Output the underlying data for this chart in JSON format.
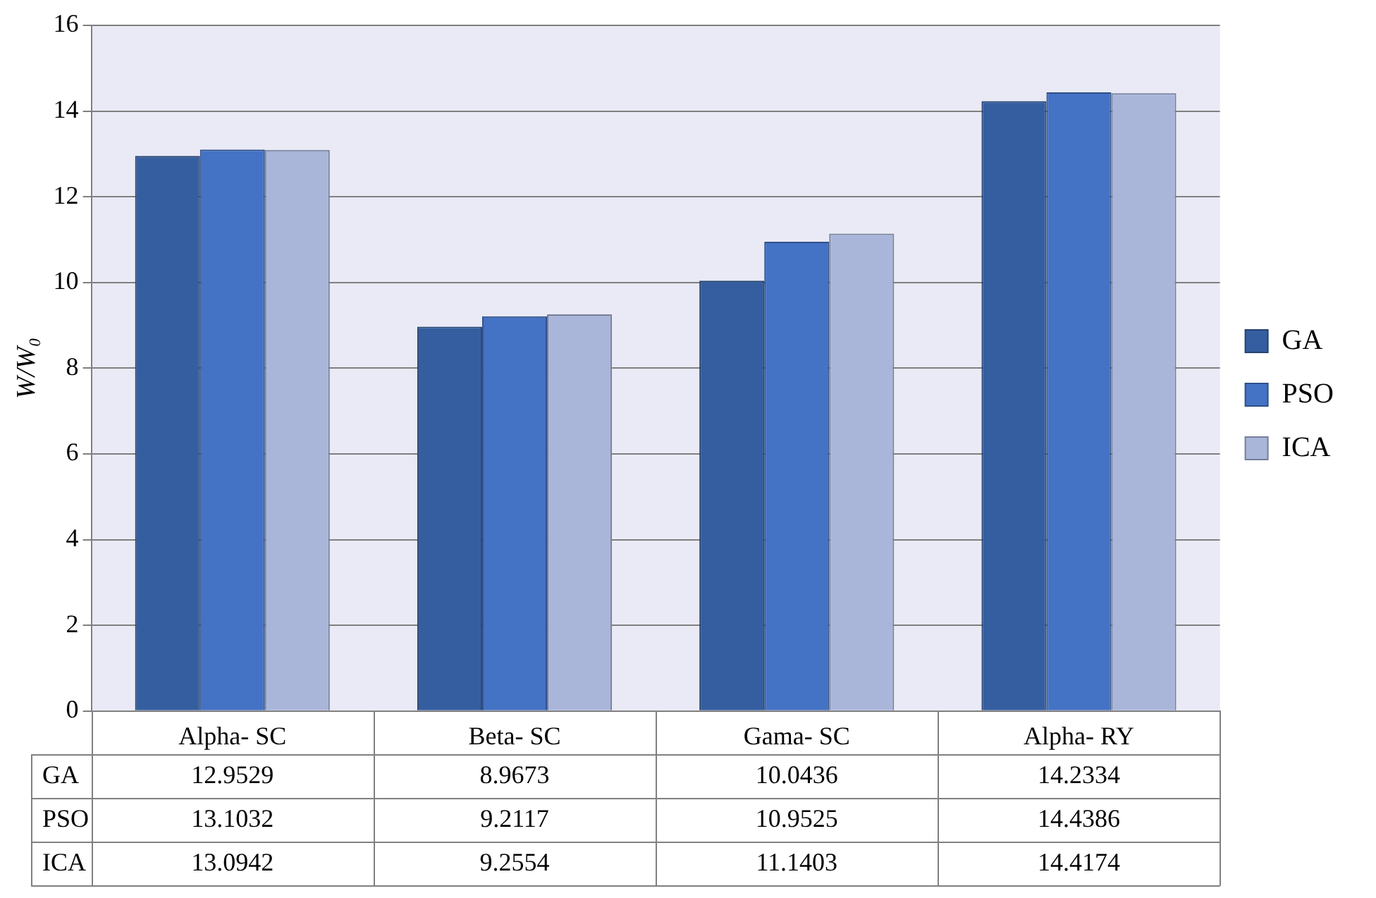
{
  "chart_data": {
    "type": "bar",
    "ylabel": "W/W₀",
    "categories": [
      "Alpha- SC",
      "Beta- SC",
      "Gama- SC",
      "Alpha- RY"
    ],
    "series": [
      {
        "name": "GA",
        "color": "#355ea0",
        "values": [
          12.9529,
          8.9673,
          10.0436,
          14.2334
        ]
      },
      {
        "name": "PSO",
        "color": "#4472c4",
        "values": [
          13.1032,
          9.2117,
          10.9525,
          14.4386
        ]
      },
      {
        "name": "ICA",
        "color": "#a9b6da",
        "values": [
          13.0942,
          9.2554,
          11.1403,
          14.4174
        ]
      }
    ],
    "ylim": [
      0,
      16
    ],
    "yticks": [
      0,
      2,
      4,
      6,
      8,
      10,
      12,
      14,
      16
    ],
    "grid": "y",
    "legend": "right",
    "data_labels": true
  }
}
